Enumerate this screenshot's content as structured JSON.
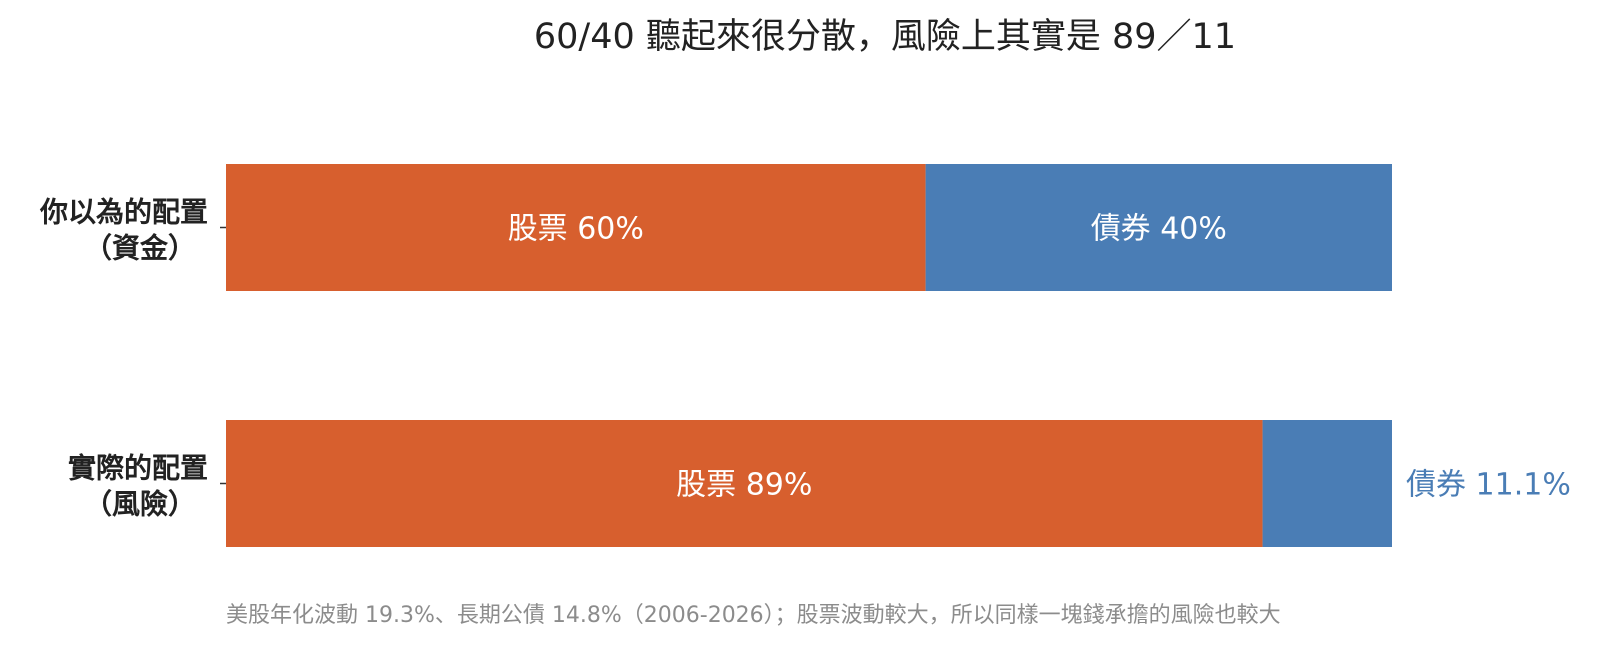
{
  "chart_data": {
    "type": "bar",
    "orientation": "horizontal",
    "stacked": true,
    "normalized": true,
    "title": "60/40 聽起來很分散，風險上其實是 89／11",
    "footnote": "美股年化波動 19.3%、長期公債 14.8%（2006-2026）；股票波動較大，所以同樣一塊錢承擔的風險也較大",
    "categories": [
      {
        "line1": "你以為的配置",
        "line2": "（資金）"
      },
      {
        "line1": "實際的配置",
        "line2": "（風險）"
      }
    ],
    "series": [
      {
        "name": "股票",
        "color": "#d75f2e",
        "values": [
          60,
          88.9
        ],
        "labels": [
          "股票 60%",
          "股票 89%"
        ]
      },
      {
        "name": "債券",
        "color": "#4a7db5",
        "values": [
          40,
          11.1
        ],
        "labels": [
          "債券 40%",
          "債券 11.1%"
        ]
      }
    ],
    "xlim": [
      0,
      100
    ],
    "grid": false,
    "legend": "none"
  },
  "colors": {
    "title": "#222222",
    "category_label": "#222222",
    "inside_label": "#ffffff",
    "footnote": "#8c8c8c",
    "tick": "#333333"
  }
}
